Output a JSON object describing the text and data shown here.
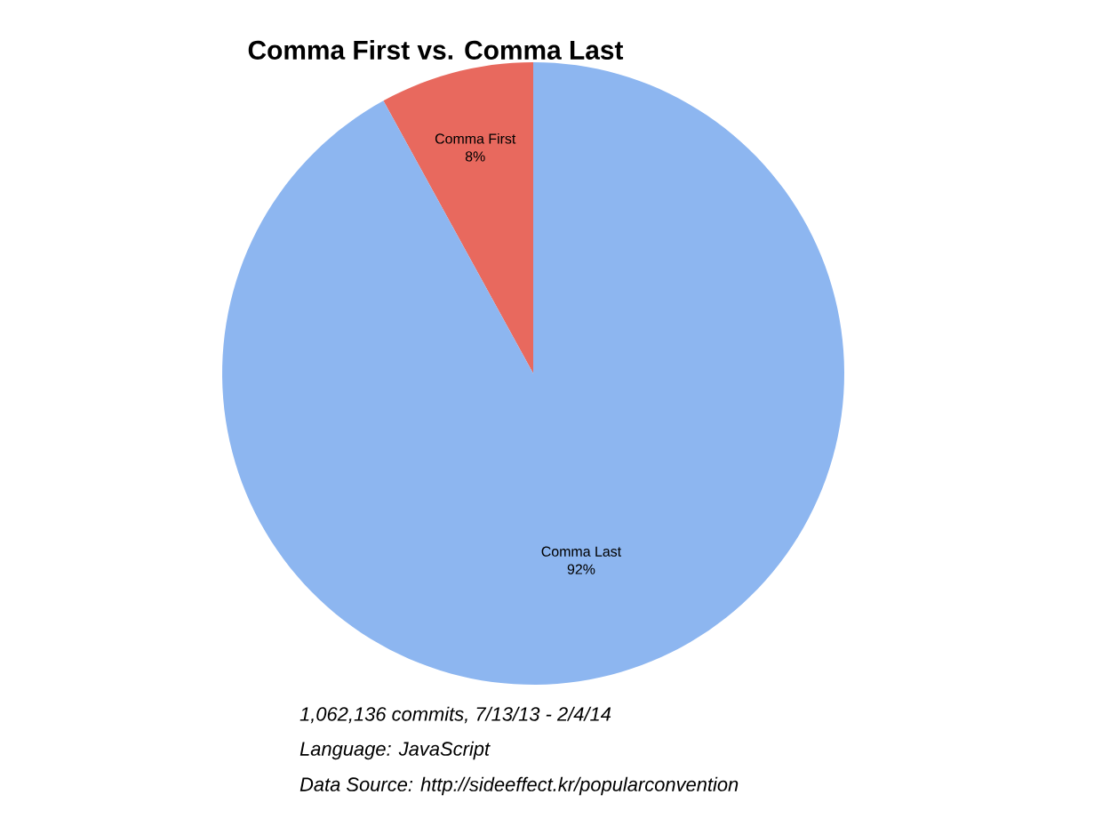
{
  "chart_data": {
    "type": "pie",
    "title": "Comma First vs. Comma Last",
    "categories": [
      "Comma First",
      "Comma Last"
    ],
    "values": [
      8,
      92
    ],
    "value_labels": [
      "8%",
      "92%"
    ],
    "colors": [
      "#e8695e",
      "#8db6f0"
    ],
    "annotations": [
      "1,062,136 commits, 7/13/13 - 2/4/14",
      "Language: JavaScript",
      "Data Source: http://sideeffect.kr/popularconvention"
    ]
  }
}
